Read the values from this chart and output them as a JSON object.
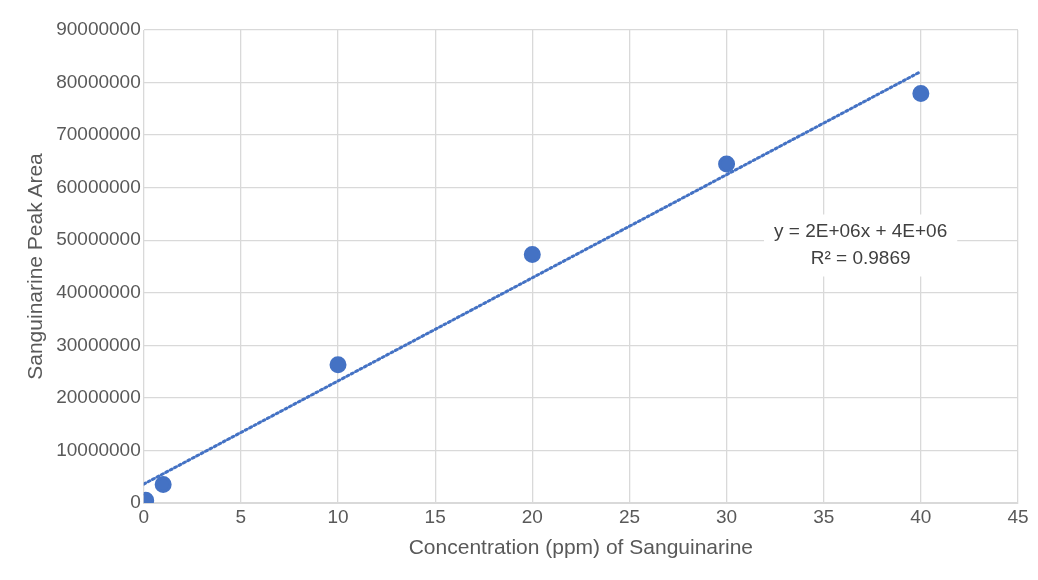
{
  "chart_data": {
    "type": "scatter",
    "xlabel": "Concentration (ppm) of Sanguinarine",
    "ylabel": "Sanguinarine Peak Area",
    "xlim": [
      0,
      45
    ],
    "xticks": [
      0,
      5,
      10,
      15,
      20,
      25,
      30,
      35,
      40,
      45
    ],
    "ylim": [
      0,
      90000000
    ],
    "yticks": [
      0,
      10000000,
      20000000,
      30000000,
      40000000,
      50000000,
      60000000,
      70000000,
      80000000,
      90000000
    ],
    "grid": true,
    "legend": false,
    "marker": "circle",
    "series": [
      {
        "color": "#4472c4",
        "x": [
          0.1,
          1,
          10,
          20,
          30,
          40
        ],
        "values": [
          500000,
          3500000,
          26300000,
          47300000,
          64500000,
          77900000
        ]
      },
      {
        "type": "line",
        "color": "#4472c4",
        "line_style": "dotted",
        "marker": "none",
        "x": [
          0,
          40
        ],
        "values": [
          3600000,
          82100000
        ]
      }
    ],
    "annotations": [
      "y = 2E+06x + 4E+06",
      "R² = 0.9869"
    ]
  }
}
